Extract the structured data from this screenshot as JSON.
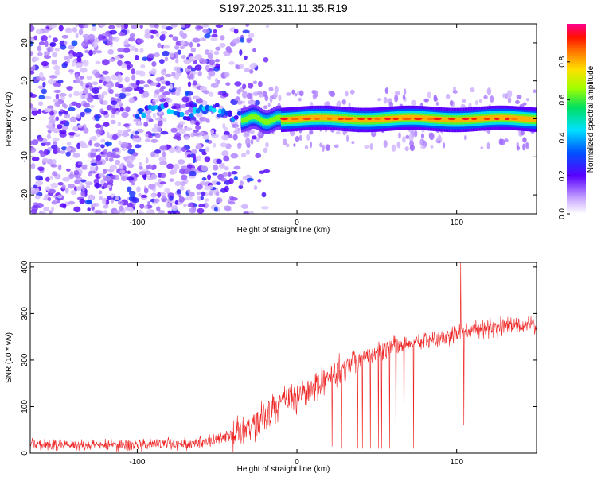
{
  "title": "S197.2025.311.11.35.R19",
  "chart_data": [
    {
      "type": "heatmap",
      "xlabel": "Height of straight line (km)",
      "ylabel": "Frequency (Hz)",
      "xlim": [
        -167,
        150
      ],
      "ylim": [
        -25,
        25
      ],
      "x_ticks": [
        -100,
        0,
        100
      ],
      "y_ticks": [
        -20,
        -10,
        0,
        10,
        20
      ],
      "colorbar": {
        "label": "Normalized spectral amplitude",
        "range": [
          0,
          1
        ],
        "ticks": [
          "0.0",
          "0.2",
          "0.4",
          "0.6",
          "0.8"
        ],
        "colormap": "rainbow (white → violet → blue → cyan → green → yellow → orange → red → magenta)"
      },
      "features": {
        "noise_region_x": [
          -167,
          -50
        ],
        "signal_band_center_hz": 0,
        "signal_onset_km": -35,
        "peak_amplitude": 0.95
      },
      "grid": false
    },
    {
      "type": "line",
      "xlabel": "Height of straight line (km)",
      "ylabel": "SNR (10 * v/v)",
      "xlim": [
        -167,
        150
      ],
      "ylim": [
        0,
        410
      ],
      "x_ticks": [
        -100,
        0,
        100
      ],
      "y_ticks": [
        0,
        100,
        200,
        300,
        400
      ],
      "series": [
        {
          "color": "#ee2222",
          "trend_x": [
            -167,
            -100,
            -60,
            -40,
            -30,
            -20,
            -10,
            0,
            10,
            20,
            30,
            40,
            60,
            80,
            95,
            103,
            110,
            130,
            150
          ],
          "trend_y": [
            18,
            18,
            22,
            38,
            55,
            80,
            110,
            120,
            140,
            160,
            185,
            210,
            230,
            240,
            250,
            260,
            265,
            270,
            278
          ],
          "spikes": [
            {
              "x": 102.5,
              "y": 410
            },
            {
              "x": 104.5,
              "y": 60
            },
            {
              "x": 22,
              "y": 15
            },
            {
              "x": 28,
              "y": 10
            },
            {
              "x": 38,
              "y": 10
            },
            {
              "x": 41,
              "y": 10
            },
            {
              "x": 46,
              "y": 10
            },
            {
              "x": 51,
              "y": 10
            },
            {
              "x": 53,
              "y": 10
            },
            {
              "x": 58,
              "y": 10
            },
            {
              "x": 62,
              "y": 10
            },
            {
              "x": 67,
              "y": 10
            },
            {
              "x": 73,
              "y": 10
            }
          ]
        }
      ],
      "grid": false
    }
  ]
}
